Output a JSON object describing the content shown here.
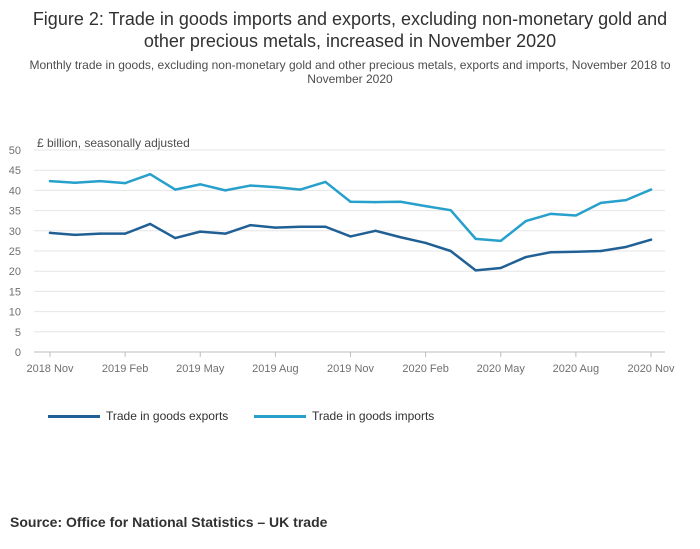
{
  "chart_data": {
    "type": "line",
    "title": "Figure 2: Trade in goods imports and exports, excluding non-monetary gold and other precious metals, increased in November 2020",
    "subtitle": "Monthly trade in goods, excluding non-monetary gold and other precious metals, exports and imports, November 2018 to November 2020",
    "ylabel": "£ billion, seasonally adjusted",
    "xlabel": "",
    "ylim": [
      0,
      50
    ],
    "yticks": [
      0,
      5,
      10,
      15,
      20,
      25,
      30,
      35,
      40,
      45,
      50
    ],
    "x": [
      "2018 Nov",
      "2018 Dec",
      "2019 Jan",
      "2019 Feb",
      "2019 Mar",
      "2019 Apr",
      "2019 May",
      "2019 Jun",
      "2019 Jul",
      "2019 Aug",
      "2019 Sep",
      "2019 Oct",
      "2019 Nov",
      "2019 Dec",
      "2020 Jan",
      "2020 Feb",
      "2020 Mar",
      "2020 Apr",
      "2020 May",
      "2020 Jun",
      "2020 Jul",
      "2020 Aug",
      "2020 Sep",
      "2020 Oct",
      "2020 Nov"
    ],
    "xtick_labels": [
      "2018 Nov",
      "2019 Feb",
      "2019 May",
      "2019 Aug",
      "2019 Nov",
      "2020 Feb",
      "2020 May",
      "2020 Aug",
      "2020 Nov"
    ],
    "xtick_indices": [
      0,
      3,
      6,
      9,
      12,
      15,
      18,
      21,
      24
    ],
    "series": [
      {
        "name": "Trade in goods exports",
        "color": "#206095",
        "values": [
          29.5,
          29.0,
          29.3,
          29.3,
          31.7,
          28.2,
          29.8,
          29.3,
          31.4,
          30.8,
          31.0,
          31.0,
          28.6,
          30.0,
          28.4,
          27.0,
          25.0,
          20.2,
          20.8,
          23.5,
          24.7,
          24.8,
          25.0,
          26.0,
          27.8
        ]
      },
      {
        "name": "Trade in goods imports",
        "color": "#27a0cc",
        "values": [
          42.3,
          41.9,
          42.3,
          41.8,
          44.0,
          40.2,
          41.5,
          40.0,
          41.2,
          40.8,
          40.2,
          42.1,
          37.2,
          37.1,
          37.2,
          36.1,
          35.1,
          28.0,
          27.5,
          32.4,
          34.2,
          33.8,
          36.9,
          37.6,
          40.2
        ]
      }
    ],
    "grid": true,
    "legend_position": "bottom"
  },
  "source": "Source: Office for National Statistics – UK trade"
}
